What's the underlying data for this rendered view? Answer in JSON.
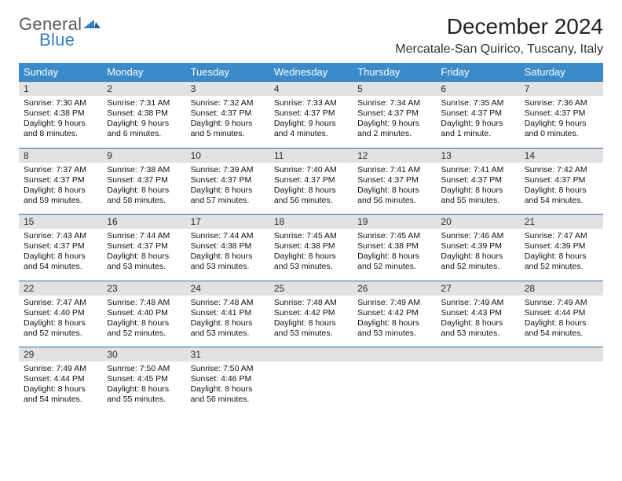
{
  "logo": {
    "line1": "General",
    "line2": "Blue"
  },
  "title": "December 2024",
  "location": "Mercatale-San Quirico, Tuscany, Italy",
  "colors": {
    "header_bg": "#3b8bca",
    "header_text": "#ffffff",
    "daynum_bg": "#e2e2e2",
    "daynum_border": "#2f6fa5",
    "logo_gray": "#5a5a5a",
    "logo_blue": "#2f7fc2"
  },
  "dow": [
    "Sunday",
    "Monday",
    "Tuesday",
    "Wednesday",
    "Thursday",
    "Friday",
    "Saturday"
  ],
  "weeks": [
    [
      {
        "n": "1",
        "sunrise": "7:30 AM",
        "sunset": "4:38 PM",
        "dl": "9 hours and 8 minutes."
      },
      {
        "n": "2",
        "sunrise": "7:31 AM",
        "sunset": "4:38 PM",
        "dl": "9 hours and 6 minutes."
      },
      {
        "n": "3",
        "sunrise": "7:32 AM",
        "sunset": "4:37 PM",
        "dl": "9 hours and 5 minutes."
      },
      {
        "n": "4",
        "sunrise": "7:33 AM",
        "sunset": "4:37 PM",
        "dl": "9 hours and 4 minutes."
      },
      {
        "n": "5",
        "sunrise": "7:34 AM",
        "sunset": "4:37 PM",
        "dl": "9 hours and 2 minutes."
      },
      {
        "n": "6",
        "sunrise": "7:35 AM",
        "sunset": "4:37 PM",
        "dl": "9 hours and 1 minute."
      },
      {
        "n": "7",
        "sunrise": "7:36 AM",
        "sunset": "4:37 PM",
        "dl": "9 hours and 0 minutes."
      }
    ],
    [
      {
        "n": "8",
        "sunrise": "7:37 AM",
        "sunset": "4:37 PM",
        "dl": "8 hours and 59 minutes."
      },
      {
        "n": "9",
        "sunrise": "7:38 AM",
        "sunset": "4:37 PM",
        "dl": "8 hours and 58 minutes."
      },
      {
        "n": "10",
        "sunrise": "7:39 AM",
        "sunset": "4:37 PM",
        "dl": "8 hours and 57 minutes."
      },
      {
        "n": "11",
        "sunrise": "7:40 AM",
        "sunset": "4:37 PM",
        "dl": "8 hours and 56 minutes."
      },
      {
        "n": "12",
        "sunrise": "7:41 AM",
        "sunset": "4:37 PM",
        "dl": "8 hours and 56 minutes."
      },
      {
        "n": "13",
        "sunrise": "7:41 AM",
        "sunset": "4:37 PM",
        "dl": "8 hours and 55 minutes."
      },
      {
        "n": "14",
        "sunrise": "7:42 AM",
        "sunset": "4:37 PM",
        "dl": "8 hours and 54 minutes."
      }
    ],
    [
      {
        "n": "15",
        "sunrise": "7:43 AM",
        "sunset": "4:37 PM",
        "dl": "8 hours and 54 minutes."
      },
      {
        "n": "16",
        "sunrise": "7:44 AM",
        "sunset": "4:37 PM",
        "dl": "8 hours and 53 minutes."
      },
      {
        "n": "17",
        "sunrise": "7:44 AM",
        "sunset": "4:38 PM",
        "dl": "8 hours and 53 minutes."
      },
      {
        "n": "18",
        "sunrise": "7:45 AM",
        "sunset": "4:38 PM",
        "dl": "8 hours and 53 minutes."
      },
      {
        "n": "19",
        "sunrise": "7:45 AM",
        "sunset": "4:38 PM",
        "dl": "8 hours and 52 minutes."
      },
      {
        "n": "20",
        "sunrise": "7:46 AM",
        "sunset": "4:39 PM",
        "dl": "8 hours and 52 minutes."
      },
      {
        "n": "21",
        "sunrise": "7:47 AM",
        "sunset": "4:39 PM",
        "dl": "8 hours and 52 minutes."
      }
    ],
    [
      {
        "n": "22",
        "sunrise": "7:47 AM",
        "sunset": "4:40 PM",
        "dl": "8 hours and 52 minutes."
      },
      {
        "n": "23",
        "sunrise": "7:48 AM",
        "sunset": "4:40 PM",
        "dl": "8 hours and 52 minutes."
      },
      {
        "n": "24",
        "sunrise": "7:48 AM",
        "sunset": "4:41 PM",
        "dl": "8 hours and 53 minutes."
      },
      {
        "n": "25",
        "sunrise": "7:48 AM",
        "sunset": "4:42 PM",
        "dl": "8 hours and 53 minutes."
      },
      {
        "n": "26",
        "sunrise": "7:49 AM",
        "sunset": "4:42 PM",
        "dl": "8 hours and 53 minutes."
      },
      {
        "n": "27",
        "sunrise": "7:49 AM",
        "sunset": "4:43 PM",
        "dl": "8 hours and 53 minutes."
      },
      {
        "n": "28",
        "sunrise": "7:49 AM",
        "sunset": "4:44 PM",
        "dl": "8 hours and 54 minutes."
      }
    ],
    [
      {
        "n": "29",
        "sunrise": "7:49 AM",
        "sunset": "4:44 PM",
        "dl": "8 hours and 54 minutes."
      },
      {
        "n": "30",
        "sunrise": "7:50 AM",
        "sunset": "4:45 PM",
        "dl": "8 hours and 55 minutes."
      },
      {
        "n": "31",
        "sunrise": "7:50 AM",
        "sunset": "4:46 PM",
        "dl": "8 hours and 56 minutes."
      },
      {
        "empty": true
      },
      {
        "empty": true
      },
      {
        "empty": true
      },
      {
        "empty": true
      }
    ]
  ],
  "labels": {
    "sunrise": "Sunrise: ",
    "sunset": "Sunset: ",
    "daylight": "Daylight: "
  }
}
